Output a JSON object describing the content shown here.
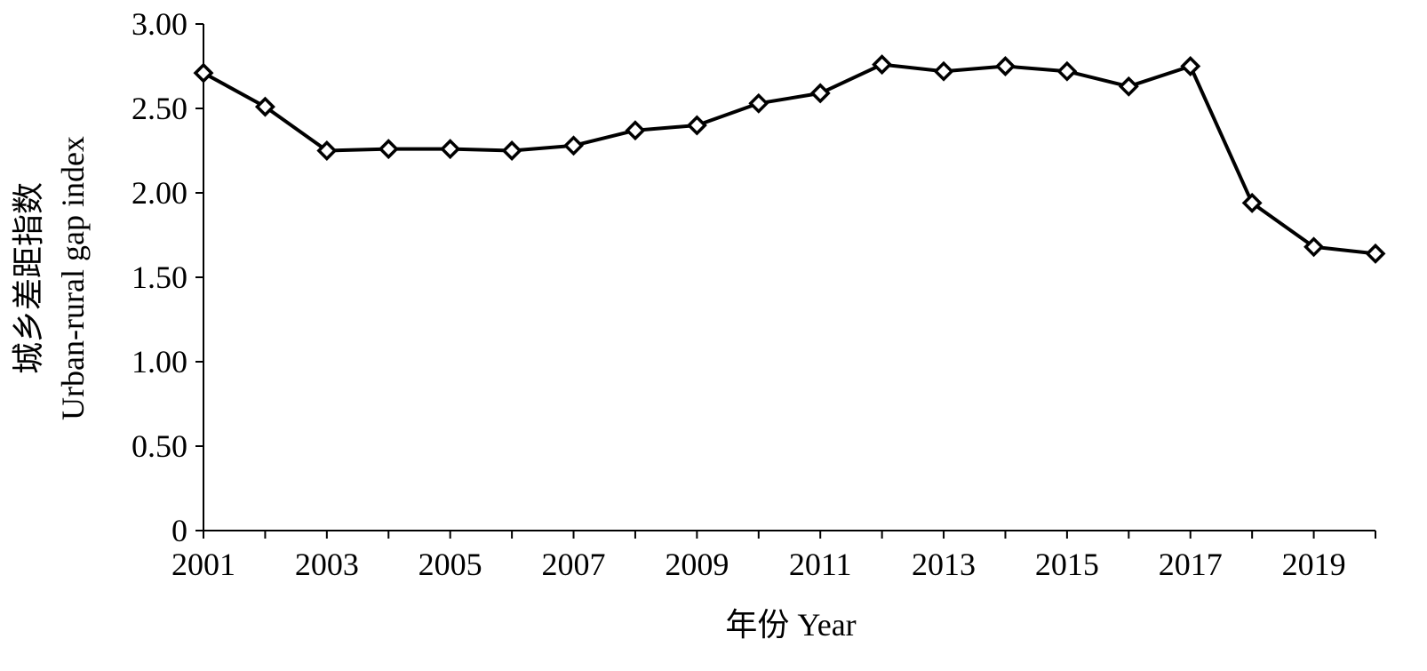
{
  "chart_data": {
    "type": "line",
    "xlabel": "年份 Year",
    "ylabel_cn": "城乡差距指数",
    "ylabel_en": "Urban-rural gap index",
    "ylim": [
      0,
      3.0
    ],
    "y_ticks": [
      "0",
      "0.50",
      "1.00",
      "1.50",
      "2.00",
      "2.50",
      "3.00"
    ],
    "y_tick_values": [
      0,
      0.5,
      1.0,
      1.5,
      2.0,
      2.5,
      3.0
    ],
    "x_tick_labels": [
      "2001",
      "2003",
      "2005",
      "2007",
      "2009",
      "2011",
      "2013",
      "2015",
      "2017",
      "2019"
    ],
    "grid": false,
    "marker": "diamond-open",
    "series": [
      {
        "x": [
          2001,
          2002,
          2003,
          2004,
          2005,
          2006,
          2007,
          2008,
          2009,
          2010,
          2011,
          2012,
          2013,
          2014,
          2015,
          2016,
          2017,
          2018,
          2019,
          2020
        ],
        "values": [
          2.71,
          2.51,
          2.25,
          2.26,
          2.26,
          2.25,
          2.28,
          2.37,
          2.4,
          2.53,
          2.59,
          2.76,
          2.72,
          2.75,
          2.72,
          2.63,
          2.75,
          1.94,
          1.68,
          1.64
        ]
      }
    ]
  }
}
